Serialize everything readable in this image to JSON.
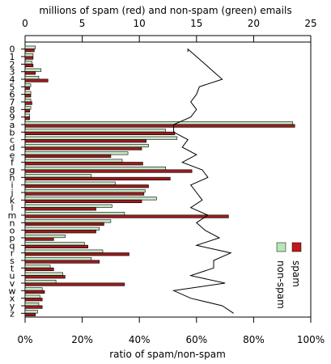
{
  "chart_data": {
    "type": "bar",
    "top_axis_label": "millions of spam (red) and non-spam (green) emails",
    "bottom_axis_label": "ratio of spam/non-spam",
    "top_axis": {
      "min": 0,
      "max": 25,
      "ticks": [
        "0",
        "5",
        "10",
        "15",
        "20",
        "25"
      ]
    },
    "bottom_axis": {
      "min": 0,
      "max": 1,
      "ticks": [
        "0%",
        "20%",
        "40%",
        "60%",
        "80%",
        "100%"
      ]
    },
    "categories": [
      "0",
      "1",
      "2",
      "3",
      "4",
      "5",
      "6",
      "7",
      "8",
      "9",
      "a",
      "b",
      "c",
      "d",
      "e",
      "f",
      "g",
      "h",
      "i",
      "j",
      "k",
      "l",
      "m",
      "n",
      "o",
      "p",
      "q",
      "r",
      "s",
      "t",
      "u",
      "v",
      "w",
      "x",
      "y",
      "z"
    ],
    "category_tick_labels": [
      "0",
      "1",
      "2",
      "3",
      "4",
      "5",
      "6",
      "7",
      "8",
      "9",
      "a",
      "b",
      "c",
      "d",
      "e",
      "f",
      "g",
      "h",
      "i",
      "j",
      "k",
      "l",
      "m",
      "n",
      "o",
      "p",
      "q",
      "r",
      "s",
      "t",
      "u",
      "v",
      "w",
      "x",
      "y",
      "z"
    ],
    "series": [
      {
        "name": "spam",
        "color": "#9c1c1c",
        "values": [
          0.8,
          0.7,
          0.7,
          0.9,
          2.0,
          0.4,
          0.5,
          0.6,
          0.4,
          0.4,
          23.6,
          13.1,
          10.6,
          10.2,
          7.5,
          10.3,
          14.6,
          12.7,
          10.8,
          10.4,
          10.2,
          6.2,
          17.8,
          6.9,
          6.2,
          2.5,
          5.5,
          9.1,
          6.5,
          2.5,
          3.5,
          8.7,
          1.7,
          1.5,
          1.5,
          0.9
        ]
      },
      {
        "name": "non-spam",
        "color": "#c6e6c6",
        "values": [
          0.9,
          0.7,
          0.6,
          1.4,
          1.2,
          0.5,
          0.5,
          0.5,
          0.5,
          0.4,
          23.4,
          12.3,
          13.3,
          10.8,
          9.0,
          8.5,
          12.3,
          5.8,
          7.9,
          10.5,
          11.5,
          7.6,
          8.7,
          7.5,
          6.5,
          3.5,
          5.2,
          6.8,
          5.8,
          2.2,
          3.3,
          2.7,
          1.5,
          1.3,
          1.2,
          1.1
        ]
      }
    ],
    "ratio_line": {
      "values": [
        0.57,
        0.6,
        0.63,
        0.66,
        0.69,
        0.61,
        0.6,
        0.58,
        0.6,
        0.58,
        0.52,
        0.52,
        0.57,
        0.55,
        0.6,
        0.55,
        0.62,
        0.64,
        0.58,
        0.6,
        0.62,
        0.58,
        0.64,
        0.6,
        0.63,
        0.68,
        0.6,
        0.72,
        0.66,
        0.66,
        0.58,
        0.7,
        0.52,
        0.58,
        0.69,
        0.73
      ]
    },
    "legend": {
      "position": "right",
      "entries": [
        {
          "label": "spam",
          "color": "#c01818"
        },
        {
          "label": "non-spam",
          "color": "#b8e6b8"
        }
      ]
    }
  }
}
